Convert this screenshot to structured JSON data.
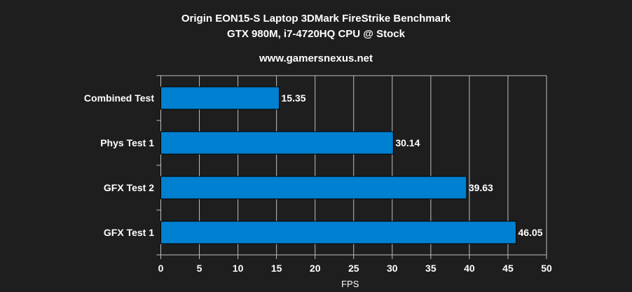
{
  "chart_data": {
    "type": "bar",
    "orientation": "horizontal",
    "title": "Origin EON15-S Laptop 3DMark FireStrike Benchmark",
    "subtitle": "GTX 980M, i7-4720HQ CPU @ Stock",
    "source": "www.gamersnexus.net",
    "categories": [
      "Combined Test",
      "Phys Test 1",
      "GFX Test 2",
      "GFX Test 1"
    ],
    "values": [
      15.35,
      30.14,
      39.63,
      46.05
    ],
    "data_labels": [
      "15.35",
      "30.14",
      "39.63",
      "46.05"
    ],
    "xlabel": "FPS",
    "ylabel": "",
    "xlim": [
      0,
      50
    ],
    "xticks": [
      "0",
      "5",
      "10",
      "15",
      "20",
      "25",
      "30",
      "35",
      "40",
      "45",
      "50"
    ],
    "grid": true,
    "legend": "none",
    "colors": {
      "bar": "#0080d0",
      "background": "#1e1e1e",
      "grid": "#bfbfbf",
      "text": "#ffffff"
    }
  }
}
